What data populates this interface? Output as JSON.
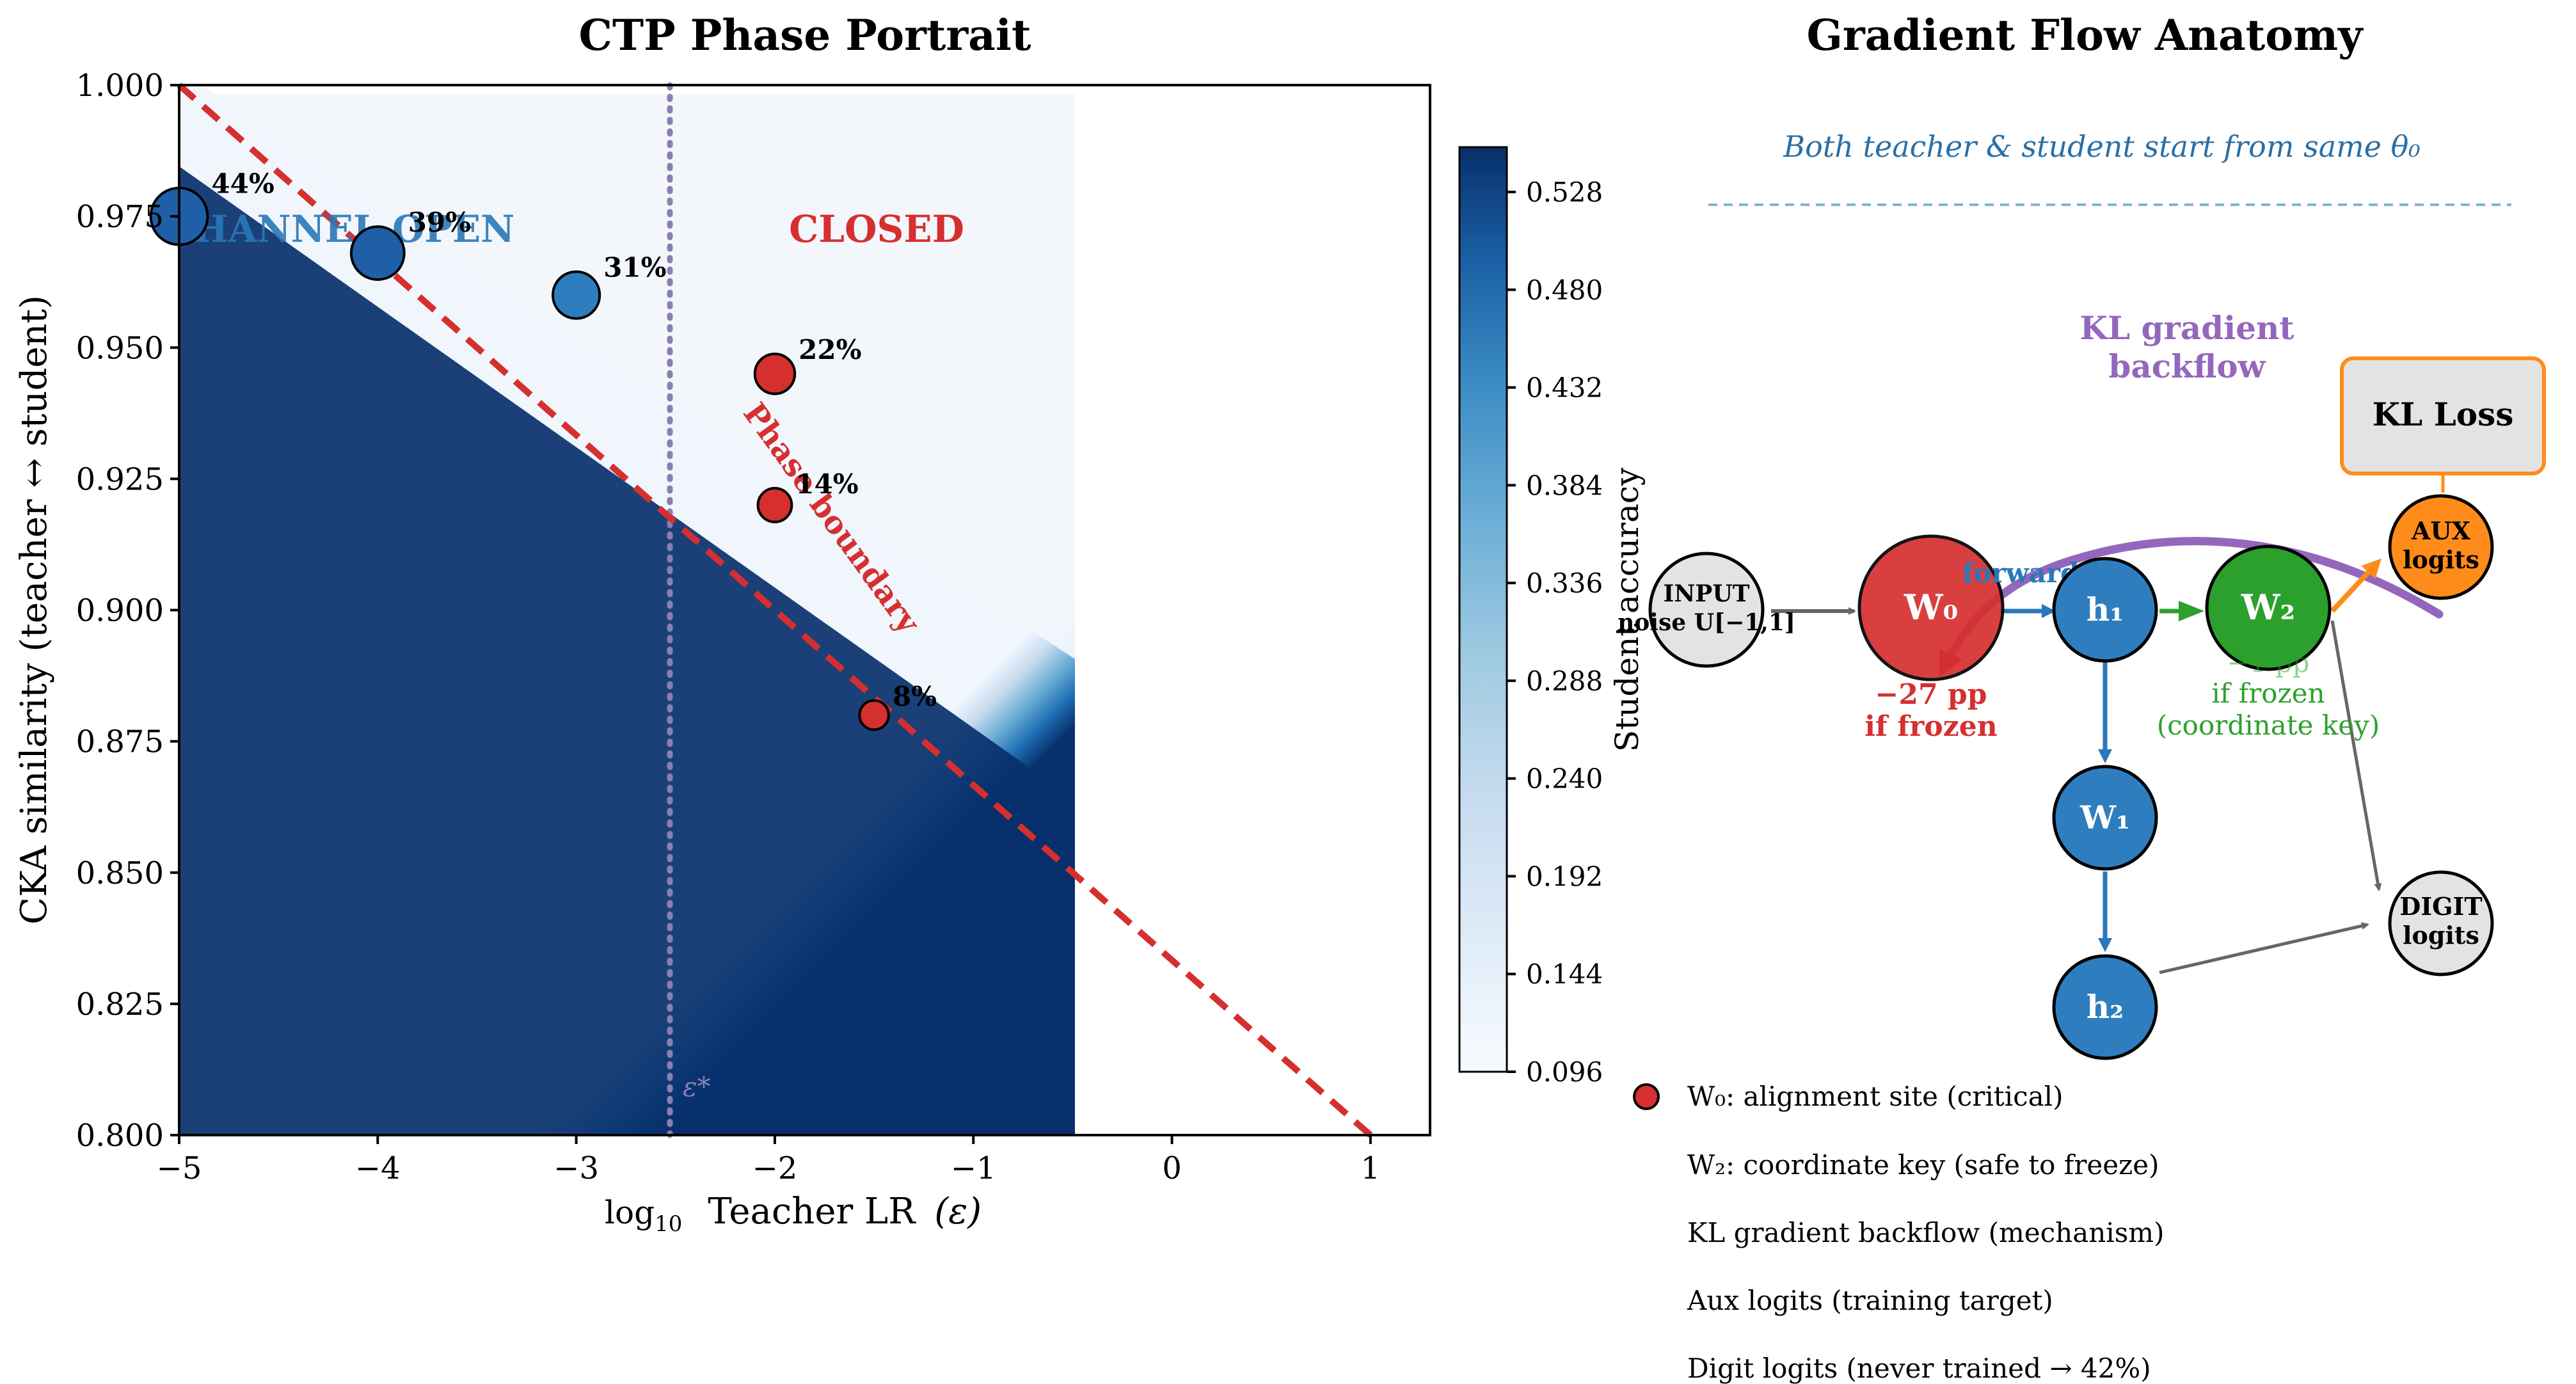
{
  "colors": {
    "open": "#1f5fa8",
    "closed": "#d62f2f",
    "boundary": "#d62f2f",
    "epsilon_line": "#8a7fb0",
    "kl": "#9467bd",
    "forward": "#2a78b9",
    "w2": "#2ca02c",
    "aux": "#ff8c1a",
    "node_blue": "#2e7ebf",
    "node_gray": "#e3e3e3",
    "instr": "#2a6fa6"
  },
  "left": {
    "title": "CTP Phase Portrait",
    "xlabel_prefix": "log",
    "xlabel_sub": "10",
    "xlabel_main": "Teacher LR",
    "xlabel_sym": "(ε)",
    "ylabel": "CKA similarity (teacher ↔ student)",
    "region_open": "CHANNEL OPEN",
    "region_closed": "CLOSED",
    "boundary_label": "Phase boundary",
    "epsilon_label": "ε*",
    "colorbar_label": "Student accuracy"
  },
  "chart_data": {
    "type": "scatter",
    "title": "CTP Phase Portrait",
    "xlabel": "log10 Teacher LR (ε)",
    "ylabel": "CKA similarity (teacher ↔ student)",
    "xlim": [
      -5,
      1.3
    ],
    "ylim": [
      0.8,
      1.0
    ],
    "xticks": [
      -5,
      -4,
      -3,
      -2,
      -1,
      0,
      1
    ],
    "xtick_labels": [
      "−5",
      "−4",
      "−3",
      "−2",
      "−1",
      "0",
      "1"
    ],
    "yticks": [
      0.8,
      0.825,
      0.85,
      0.875,
      0.9,
      0.925,
      0.95,
      0.975,
      1.0
    ],
    "ytick_labels": [
      "0.800",
      "0.825",
      "0.850",
      "0.875",
      "0.900",
      "0.925",
      "0.950",
      "0.975",
      "1.000"
    ],
    "heatmap": {
      "x_range": [
        -5,
        -0.5
      ],
      "y_range": [
        0.8,
        0.998
      ],
      "boundary_line": {
        "x": [
          -5,
          1
        ],
        "y": [
          1.0,
          0.8
        ]
      },
      "epsilon_star_x": -2.5
    },
    "colorbar": {
      "label": "Student accuracy",
      "min": 0.096,
      "max": 0.55,
      "ticks": [
        0.096,
        0.144,
        0.192,
        0.24,
        0.288,
        0.336,
        0.384,
        0.432,
        0.48,
        0.528
      ],
      "tick_labels": [
        "0.096",
        "0.144",
        "0.192",
        "0.240",
        "0.288",
        "0.336",
        "0.384",
        "0.432",
        "0.480",
        "0.528"
      ]
    },
    "points": [
      {
        "x": -5.0,
        "y": 0.975,
        "label": "44%",
        "acc": 0.44,
        "color": "#1f5fa8"
      },
      {
        "x": -4.0,
        "y": 0.968,
        "label": "39%",
        "acc": 0.39,
        "color": "#1f5fa8"
      },
      {
        "x": -3.0,
        "y": 0.96,
        "label": "31%",
        "acc": 0.31,
        "color": "#2e7ebf"
      },
      {
        "x": -2.0,
        "y": 0.945,
        "label": "22%",
        "acc": 0.22,
        "color": "#d62f2f"
      },
      {
        "x": -2.0,
        "y": 0.92,
        "label": "14%",
        "acc": 0.14,
        "color": "#d62f2f"
      },
      {
        "x": -1.5,
        "y": 0.88,
        "label": "8%",
        "acc": 0.08,
        "color": "#d62f2f"
      }
    ]
  },
  "right": {
    "title": "Gradient Flow Anatomy",
    "instruction": "Both teacher & student start from same θ₀",
    "kl_label_1": "KL gradient",
    "kl_label_2": "backflow",
    "kl_loss": "KL Loss",
    "input_1": "INPUT",
    "input_2": "noise U[−1,1]",
    "w0": "W₀",
    "h1": "h₁",
    "w2": "W₂",
    "w1": "W₁",
    "h2": "h₂",
    "aux_1": "AUX",
    "aux_2": "logits",
    "digit_1": "DIGIT",
    "digit_2": "logits",
    "forward": "forward",
    "w0_note_1": "−27 pp",
    "w0_note_2": "if frozen",
    "w2_note_1": "−1 pp",
    "w2_note_2": "if frozen",
    "w2_note_3": "(coordinate key)",
    "legend": [
      "W₀: alignment site (critical)",
      "W₂: coordinate key (safe to freeze)",
      "KL gradient backflow (mechanism)",
      "Aux logits (training target)",
      "Digit logits (never trained → 42%)"
    ]
  }
}
